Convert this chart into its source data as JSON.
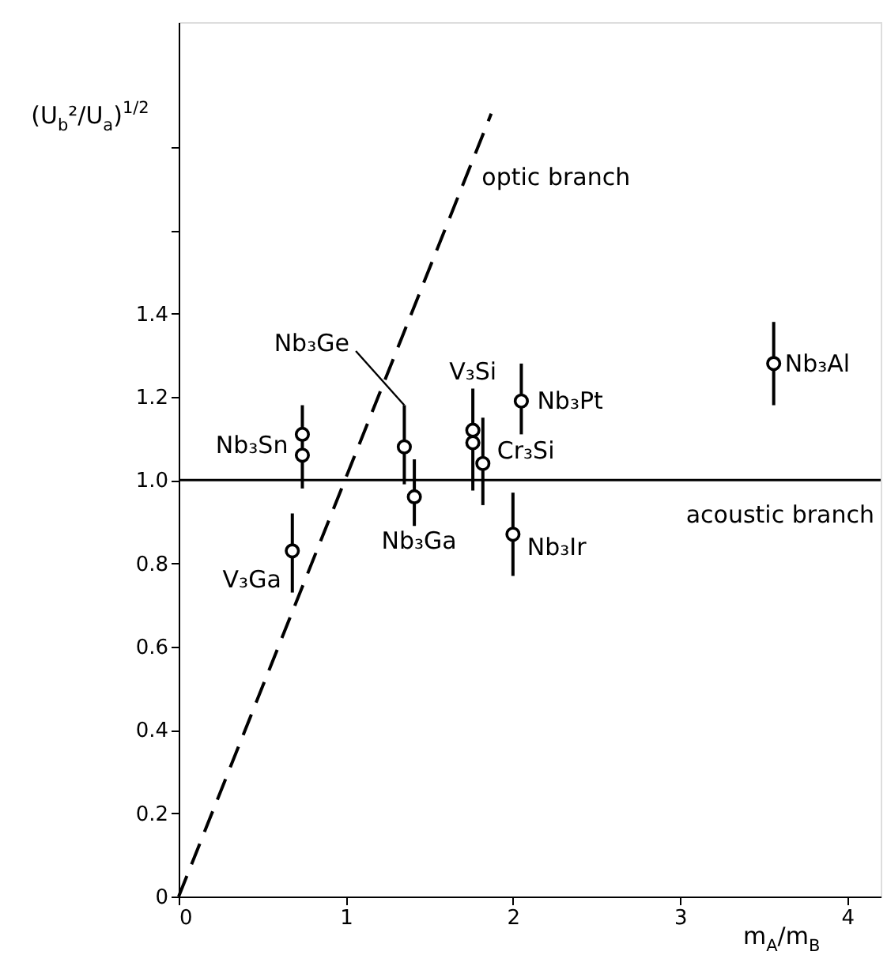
{
  "chart_data": {
    "type": "scatter",
    "xlabel": "m$_{A}$/m$_{B}$",
    "ylabel": "(U$_{b}$²/U$_{a}$)$^{1/2}$",
    "xlim": [
      0,
      4.2
    ],
    "ylim": [
      0,
      2.1
    ],
    "xticks": [
      0,
      1,
      2,
      3,
      4
    ],
    "yticks": [
      0,
      0.2,
      0.4,
      0.6,
      0.8,
      {
        "value": 1.0,
        "label": "1.0"
      },
      1.2,
      1.4,
      {
        "value": 1.6,
        "label": null
      },
      {
        "value": 1.8,
        "label": null
      }
    ],
    "grid": false,
    "series": [
      {
        "color": "#000000",
        "marker": "circle",
        "x": [
          0.74,
          0.74,
          1.35,
          1.41,
          1.76,
          1.76,
          1.82,
          2.05,
          2.0,
          0.68,
          3.56
        ],
        "values": [
          1.11,
          1.06,
          1.08,
          0.96,
          1.12,
          1.09,
          1.04,
          1.19,
          0.87,
          0.83,
          1.28
        ],
        "errors": [
          [
            0.98,
            1.18
          ],
          null,
          [
            0.99,
            1.18
          ],
          [
            0.89,
            1.05
          ],
          [
            0.975,
            1.22
          ],
          null,
          [
            0.94,
            1.15
          ],
          [
            1.11,
            1.28
          ],
          [
            0.77,
            0.97
          ],
          [
            0.73,
            0.92
          ],
          [
            1.18,
            1.38
          ]
        ]
      },
      {
        "type": "line",
        "name": "optic branch",
        "color": "#000000",
        "marker": "none",
        "line_style": "dashed",
        "x": [
          0,
          1.87
        ],
        "values": [
          0,
          1.88
        ]
      }
    ],
    "ref_lines": [
      {
        "axis": "y",
        "value": 1.0,
        "label": "acoustic branch",
        "color": "#000000",
        "line_style": "solid"
      }
    ],
    "annotations": [
      {
        "text": "Nb₃Sn",
        "x": 0.74,
        "y": 1.085
      },
      {
        "text": "Nb₃Ge",
        "x": 1.35,
        "y": 1.18
      },
      {
        "text": "V₃Si",
        "x": 1.76,
        "y": 1.12
      },
      {
        "text": "Nb₃Pt",
        "x": 2.05,
        "y": 1.19
      },
      {
        "text": "Cr₃Si",
        "x": 1.82,
        "y": 1.04
      },
      {
        "text": "Nb₃Ga",
        "x": 1.41,
        "y": 0.96
      },
      {
        "text": "Nb₃Ir",
        "x": 2.0,
        "y": 0.87
      },
      {
        "text": "V₃Ga",
        "x": 0.68,
        "y": 0.83
      },
      {
        "text": "Nb₃Al",
        "x": 3.56,
        "y": 1.28
      }
    ]
  }
}
